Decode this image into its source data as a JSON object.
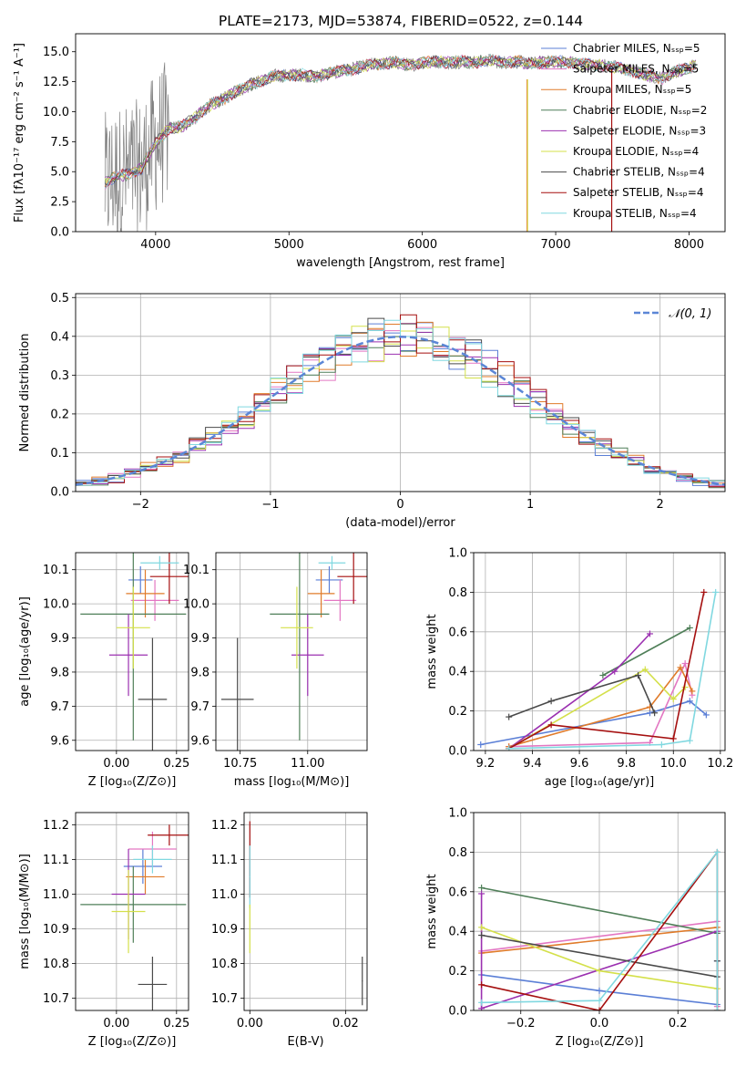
{
  "figure": {
    "title": "PLATE=2173, MJD=53874, FIBERID=0522, z=0.144"
  },
  "colors": {
    "chabrier_miles": "#5b7fd6",
    "salpeter_miles": "#e377c2",
    "kroupa_miles": "#e07b2a",
    "chabrier_elodie": "#4f7f58",
    "salpeter_elodie": "#9b30b0",
    "kroupa_elodie": "#d4e04a",
    "chabrier_stelib": "#4a4a4a",
    "salpeter_stelib": "#a50f0f",
    "kroupa_stelib": "#80d8e0",
    "data": "#808080",
    "normal": "#5b86d6"
  },
  "chart_data": [
    {
      "id": "spectrum",
      "type": "line",
      "xlabel": "wavelength [Angstrom, rest frame]",
      "ylabel": "Flux [fλ10⁻¹⁷ erg cm⁻² s⁻¹ A⁻¹]",
      "xlim": [
        3400,
        8270
      ],
      "ylim": [
        0,
        16.5
      ],
      "xticks": [
        4000,
        5000,
        6000,
        7000,
        8000
      ],
      "yticks": [
        0.0,
        2.5,
        5.0,
        7.5,
        10.0,
        12.5,
        15.0
      ],
      "xtick_labels": [
        "4000",
        "5000",
        "6000",
        "7000",
        "8000"
      ],
      "ytick_labels": [
        "0.0",
        "2.5",
        "5.0",
        "7.5",
        "10.0",
        "12.5",
        "15.0"
      ],
      "legend": {
        "placement": "upper-right",
        "entries": [
          {
            "label": "Chabrier MILES, Nₛₛₚ=5",
            "color_key": "chabrier_miles"
          },
          {
            "label": "Salpeter MILES, Nₛₛₚ=5",
            "color_key": "salpeter_miles"
          },
          {
            "label": "Kroupa MILES, Nₛₛₚ=5",
            "color_key": "kroupa_miles"
          },
          {
            "label": "Chabrier ELODIE, Nₛₛₚ=2",
            "color_key": "chabrier_elodie"
          },
          {
            "label": "Salpeter ELODIE, Nₛₛₚ=3",
            "color_key": "salpeter_elodie"
          },
          {
            "label": "Kroupa ELODIE, Nₛₛₚ=4",
            "color_key": "kroupa_elodie"
          },
          {
            "label": "Chabrier STELIB, Nₛₛₚ=4",
            "color_key": "chabrier_stelib"
          },
          {
            "label": "Salpeter STELIB, Nₛₛₚ=4",
            "color_key": "salpeter_stelib"
          },
          {
            "label": "Kroupa STELIB, Nₛₛₚ=4",
            "color_key": "kroupa_stelib"
          }
        ]
      },
      "continuum_points": [
        [
          3620,
          4.0
        ],
        [
          3700,
          4.6
        ],
        [
          3800,
          4.8
        ],
        [
          3900,
          5.3
        ],
        [
          3950,
          6.4
        ],
        [
          4000,
          7.4
        ],
        [
          4100,
          8.6
        ],
        [
          4200,
          8.8
        ],
        [
          4300,
          9.5
        ],
        [
          4400,
          10.5
        ],
        [
          4500,
          11.0
        ],
        [
          4600,
          11.7
        ],
        [
          4700,
          12.2
        ],
        [
          4800,
          12.6
        ],
        [
          4900,
          13.0
        ],
        [
          5000,
          13.0
        ],
        [
          5100,
          13.1
        ],
        [
          5200,
          12.9
        ],
        [
          5300,
          13.2
        ],
        [
          5400,
          13.4
        ],
        [
          5500,
          13.6
        ],
        [
          5600,
          13.9
        ],
        [
          5700,
          14.0
        ],
        [
          5800,
          14.1
        ],
        [
          5900,
          13.9
        ],
        [
          6000,
          14.1
        ],
        [
          6100,
          14.2
        ],
        [
          6200,
          14.1
        ],
        [
          6300,
          14.2
        ],
        [
          6400,
          14.1
        ],
        [
          6500,
          14.3
        ],
        [
          6600,
          14.1
        ],
        [
          6700,
          14.2
        ],
        [
          6800,
          14.0
        ],
        [
          6900,
          14.1
        ],
        [
          7000,
          14.2
        ],
        [
          7100,
          14.1
        ],
        [
          7200,
          14.0
        ],
        [
          7300,
          13.9
        ],
        [
          7400,
          13.8
        ],
        [
          7500,
          13.6
        ],
        [
          7600,
          13.3
        ],
        [
          7700,
          13.0
        ],
        [
          7800,
          12.8
        ],
        [
          7900,
          13.4
        ],
        [
          8000,
          13.6
        ],
        [
          8050,
          14.0
        ]
      ],
      "drops": [
        6790,
        7420
      ]
    },
    {
      "id": "residuals",
      "type": "histogram",
      "xlabel": "(data-model)/error",
      "ylabel": "Normed distribution",
      "xlim": [
        -2.5,
        2.5
      ],
      "ylim": [
        0,
        0.51
      ],
      "xticks": [
        -2,
        -1,
        0,
        1,
        2
      ],
      "yticks": [
        0.0,
        0.1,
        0.2,
        0.3,
        0.4,
        0.5
      ],
      "xtick_labels": [
        "−2",
        "−1",
        "0",
        "1",
        "2"
      ],
      "ytick_labels": [
        "0.0",
        "0.1",
        "0.2",
        "0.3",
        "0.4",
        "0.5"
      ],
      "legend": {
        "placement": "upper-right",
        "entries": [
          {
            "label": "𝒩(0, 1)",
            "color_key": "normal"
          }
        ]
      },
      "bin_width": 0.125,
      "bin_start": -2.5
    },
    {
      "id": "age_vs_Z",
      "type": "errorbar",
      "xlabel": "Z [log₁₀(Z/Z⊙)]",
      "ylabel": "age  [log₁₀(age/yr)]",
      "xlim": [
        -0.17,
        0.3
      ],
      "ylim": [
        9.57,
        10.15
      ],
      "xticks": [
        0.0,
        0.25
      ],
      "yticks": [
        9.6,
        9.7,
        9.8,
        9.9,
        10.0,
        10.1
      ],
      "xtick_labels": [
        "0.00",
        "0.25"
      ],
      "ytick_labels": [
        "9.6",
        "9.7",
        "9.8",
        "9.9",
        "10.0",
        "10.1"
      ],
      "points": [
        {
          "c": "chabrier_miles",
          "x": 0.1,
          "xe": 0.05,
          "y": 10.07,
          "ye": 0.04
        },
        {
          "c": "salpeter_miles",
          "x": 0.16,
          "xe": 0.1,
          "y": 10.01,
          "ye": 0.06
        },
        {
          "c": "kroupa_miles",
          "x": 0.12,
          "xe": 0.08,
          "y": 10.03,
          "ye": 0.07
        },
        {
          "c": "chabrier_elodie",
          "x": 0.07,
          "xe": 0.22,
          "y": 9.97,
          "ye": 0.37
        },
        {
          "c": "salpeter_elodie",
          "x": 0.05,
          "xe": 0.08,
          "y": 9.85,
          "ye": 0.12
        },
        {
          "c": "kroupa_elodie",
          "x": 0.07,
          "xe": 0.07,
          "y": 9.93,
          "ye": 0.12
        },
        {
          "c": "chabrier_stelib",
          "x": 0.15,
          "xe": 0.06,
          "y": 9.72,
          "ye": 0.18
        },
        {
          "c": "salpeter_stelib",
          "x": 0.22,
          "xe": 0.08,
          "y": 10.08,
          "ye": 0.08
        },
        {
          "c": "kroupa_stelib",
          "x": 0.18,
          "xe": 0.08,
          "y": 10.12,
          "ye": 0.02
        }
      ]
    },
    {
      "id": "age_vs_mass",
      "type": "errorbar",
      "xlabel": "mass [log₁₀(M/M⊙)]",
      "ylabel": "",
      "xlim": [
        10.66,
        11.22
      ],
      "ylim": [
        9.57,
        10.15
      ],
      "xticks": [
        10.75,
        11.0
      ],
      "yticks": [
        9.6,
        9.7,
        9.8,
        9.9,
        10.0,
        10.1
      ],
      "xtick_labels": [
        "10.75",
        "11.00"
      ],
      "ytick_labels": [
        "9.6",
        "9.7",
        "9.8",
        "9.9",
        "10.0",
        "10.1"
      ],
      "points": [
        {
          "c": "chabrier_miles",
          "x": 11.08,
          "xe": 0.05,
          "y": 10.07,
          "ye": 0.04
        },
        {
          "c": "salpeter_miles",
          "x": 11.12,
          "xe": 0.06,
          "y": 10.01,
          "ye": 0.06
        },
        {
          "c": "kroupa_miles",
          "x": 11.05,
          "xe": 0.05,
          "y": 10.03,
          "ye": 0.07
        },
        {
          "c": "chabrier_elodie",
          "x": 10.97,
          "xe": 0.11,
          "y": 9.97,
          "ye": 0.37
        },
        {
          "c": "salpeter_elodie",
          "x": 11.0,
          "xe": 0.06,
          "y": 9.85,
          "ye": 0.12
        },
        {
          "c": "kroupa_elodie",
          "x": 10.96,
          "xe": 0.06,
          "y": 9.93,
          "ye": 0.12
        },
        {
          "c": "chabrier_stelib",
          "x": 10.74,
          "xe": 0.06,
          "y": 9.72,
          "ye": 0.18
        },
        {
          "c": "salpeter_stelib",
          "x": 11.17,
          "xe": 0.06,
          "y": 10.08,
          "ye": 0.08
        },
        {
          "c": "kroupa_stelib",
          "x": 11.09,
          "xe": 0.05,
          "y": 10.12,
          "ye": 0.02
        }
      ]
    },
    {
      "id": "mass_weight_vs_age",
      "type": "line",
      "xlabel": "age  [log₁₀(age/yr)]",
      "ylabel": "mass weight",
      "xlim": [
        9.15,
        10.22
      ],
      "ylim": [
        0,
        1.0
      ],
      "xticks": [
        9.2,
        9.4,
        9.6,
        9.8,
        10.0,
        10.2
      ],
      "yticks": [
        0.0,
        0.2,
        0.4,
        0.6,
        0.8,
        1.0
      ],
      "xtick_labels": [
        "9.2",
        "9.4",
        "9.6",
        "9.8",
        "10.0",
        "10.2"
      ],
      "ytick_labels": [
        "0.0",
        "0.2",
        "0.4",
        "0.6",
        "0.8",
        "1.0"
      ],
      "series": [
        {
          "c": "chabrier_miles",
          "points": [
            [
              9.18,
              0.03
            ],
            [
              9.9,
              0.19
            ],
            [
              10.07,
              0.25
            ],
            [
              10.14,
              0.18
            ]
          ]
        },
        {
          "c": "salpeter_miles",
          "points": [
            [
              9.3,
              0.02
            ],
            [
              9.9,
              0.04
            ],
            [
              10.05,
              0.44
            ],
            [
              10.08,
              0.28
            ]
          ]
        },
        {
          "c": "kroupa_miles",
          "points": [
            [
              9.3,
              0.02
            ],
            [
              9.9,
              0.22
            ],
            [
              10.03,
              0.42
            ],
            [
              10.08,
              0.3
            ]
          ]
        },
        {
          "c": "chabrier_elodie",
          "points": [
            [
              9.7,
              0.38
            ],
            [
              10.07,
              0.62
            ]
          ]
        },
        {
          "c": "salpeter_elodie",
          "points": [
            [
              9.3,
              0.01
            ],
            [
              9.75,
              0.4
            ],
            [
              9.9,
              0.59
            ]
          ]
        },
        {
          "c": "kroupa_elodie",
          "points": [
            [
              9.3,
              0.01
            ],
            [
              9.88,
              0.41
            ],
            [
              10.0,
              0.26
            ],
            [
              10.05,
              0.32
            ]
          ]
        },
        {
          "c": "chabrier_stelib",
          "points": [
            [
              9.3,
              0.17
            ],
            [
              9.48,
              0.25
            ],
            [
              9.85,
              0.38
            ],
            [
              9.92,
              0.19
            ]
          ]
        },
        {
          "c": "salpeter_stelib",
          "points": [
            [
              9.3,
              0.01
            ],
            [
              9.48,
              0.13
            ],
            [
              10.0,
              0.06
            ],
            [
              10.13,
              0.8
            ]
          ]
        },
        {
          "c": "kroupa_stelib",
          "points": [
            [
              9.3,
              0.01
            ],
            [
              9.95,
              0.03
            ],
            [
              10.07,
              0.05
            ],
            [
              10.18,
              0.8
            ]
          ]
        }
      ]
    },
    {
      "id": "mass_vs_Z",
      "type": "errorbar",
      "xlabel": "Z [log₁₀(Z/Z⊙)]",
      "ylabel": "mass [log₁₀(M/M⊙)]",
      "xlim": [
        -0.17,
        0.3
      ],
      "ylim": [
        10.665,
        11.235
      ],
      "xticks": [
        0.0,
        0.25
      ],
      "yticks": [
        10.7,
        10.8,
        10.9,
        11.0,
        11.1,
        11.2
      ],
      "xtick_labels": [
        "0.00",
        "0.25"
      ],
      "ytick_labels": [
        "10.7",
        "10.8",
        "10.9",
        "11.0",
        "11.1",
        "11.2"
      ],
      "points": [
        {
          "c": "chabrier_miles",
          "x": 0.11,
          "xe": 0.08,
          "y": 11.08,
          "ye": 0.05
        },
        {
          "c": "salpeter_miles",
          "x": 0.15,
          "xe": 0.1,
          "y": 11.13,
          "ye": 0.05
        },
        {
          "c": "kroupa_miles",
          "x": 0.12,
          "xe": 0.08,
          "y": 11.05,
          "ye": 0.05
        },
        {
          "c": "chabrier_elodie",
          "x": 0.07,
          "xe": 0.22,
          "y": 10.97,
          "ye": 0.11
        },
        {
          "c": "salpeter_elodie",
          "x": 0.05,
          "xe": 0.07,
          "y": 11.0,
          "ye": 0.13
        },
        {
          "c": "kroupa_elodie",
          "x": 0.05,
          "xe": 0.07,
          "y": 10.95,
          "ye": 0.12
        },
        {
          "c": "chabrier_stelib",
          "x": 0.15,
          "xe": 0.06,
          "y": 10.74,
          "ye": 0.08
        },
        {
          "c": "salpeter_stelib",
          "x": 0.22,
          "xe": 0.09,
          "y": 11.17,
          "ye": 0.03
        },
        {
          "c": "kroupa_stelib",
          "x": 0.15,
          "xe": 0.08,
          "y": 11.1,
          "ye": 0.04
        }
      ]
    },
    {
      "id": "mass_vs_ebv",
      "type": "errorbar",
      "xlabel": "E(B-V)",
      "ylabel": "",
      "xlim": [
        -0.0012,
        0.0245
      ],
      "ylim": [
        10.665,
        11.235
      ],
      "xticks": [
        0.0,
        0.02
      ],
      "yticks": [
        10.7,
        10.8,
        10.9,
        11.0,
        11.1,
        11.2
      ],
      "xtick_labels": [
        "0.00",
        "0.02"
      ],
      "ytick_labels": [
        "10.7",
        "10.8",
        "10.9",
        "11.0",
        "11.1",
        "11.2"
      ],
      "points": [
        {
          "c": "salpeter_stelib",
          "x": 0.0,
          "xe": 0.0001,
          "y": 11.1,
          "ye": 0.11
        },
        {
          "c": "kroupa_stelib",
          "x": 0.0,
          "xe": 0.0001,
          "y": 11.05,
          "ye": 0.09
        },
        {
          "c": "kroupa_elodie",
          "x": 0.0,
          "xe": 0.0001,
          "y": 10.9,
          "ye": 0.07
        },
        {
          "c": "chabrier_stelib",
          "x": 0.0235,
          "xe": 0.0001,
          "y": 10.75,
          "ye": 0.07
        }
      ]
    },
    {
      "id": "mass_weight_vs_Z",
      "type": "line",
      "xlabel": "Z [log₁₀(Z/Z⊙)]",
      "ylabel": "mass weight",
      "xlim": [
        -0.32,
        0.32
      ],
      "ylim": [
        0,
        1.0
      ],
      "xticks": [
        -0.2,
        0.0,
        0.2
      ],
      "yticks": [
        0.0,
        0.2,
        0.4,
        0.6,
        0.8,
        1.0
      ],
      "xtick_labels": [
        "−0.2",
        "0.0",
        "0.2"
      ],
      "ytick_labels": [
        "0.0",
        "0.2",
        "0.4",
        "0.6",
        "0.8",
        "1.0"
      ],
      "series": [
        {
          "c": "chabrier_miles",
          "points": [
            [
              -0.3,
              0.18
            ],
            [
              0.0,
              0.1
            ],
            [
              0.3,
              0.03
            ],
            [
              0.3,
              0.25
            ]
          ]
        },
        {
          "c": "salpeter_miles",
          "points": [
            [
              -0.3,
              0.3
            ],
            [
              0.3,
              0.45
            ],
            [
              0.3,
              0.02
            ]
          ]
        },
        {
          "c": "kroupa_miles",
          "points": [
            [
              -0.3,
              0.29
            ],
            [
              0.3,
              0.42
            ],
            [
              0.3,
              0.0
            ]
          ]
        },
        {
          "c": "chabrier_elodie",
          "points": [
            [
              -0.3,
              0.62
            ],
            [
              0.3,
              0.39
            ]
          ]
        },
        {
          "c": "salpeter_elodie",
          "points": [
            [
              -0.3,
              0.59
            ],
            [
              -0.3,
              0.01
            ],
            [
              0.3,
              0.4
            ]
          ]
        },
        {
          "c": "kroupa_elodie",
          "points": [
            [
              -0.3,
              0.42
            ],
            [
              0.0,
              0.2
            ],
            [
              0.3,
              0.11
            ]
          ]
        },
        {
          "c": "chabrier_stelib",
          "points": [
            [
              -0.3,
              0.38
            ],
            [
              0.3,
              0.17
            ],
            [
              0.3,
              0.25
            ]
          ]
        },
        {
          "c": "salpeter_stelib",
          "points": [
            [
              -0.3,
              0.13
            ],
            [
              0.0,
              0.0
            ],
            [
              0.3,
              0.8
            ],
            [
              0.3,
              0.0
            ]
          ]
        },
        {
          "c": "kroupa_stelib",
          "points": [
            [
              -0.3,
              0.04
            ],
            [
              0.0,
              0.05
            ],
            [
              0.3,
              0.8
            ],
            [
              0.3,
              0.0
            ]
          ]
        }
      ]
    }
  ]
}
